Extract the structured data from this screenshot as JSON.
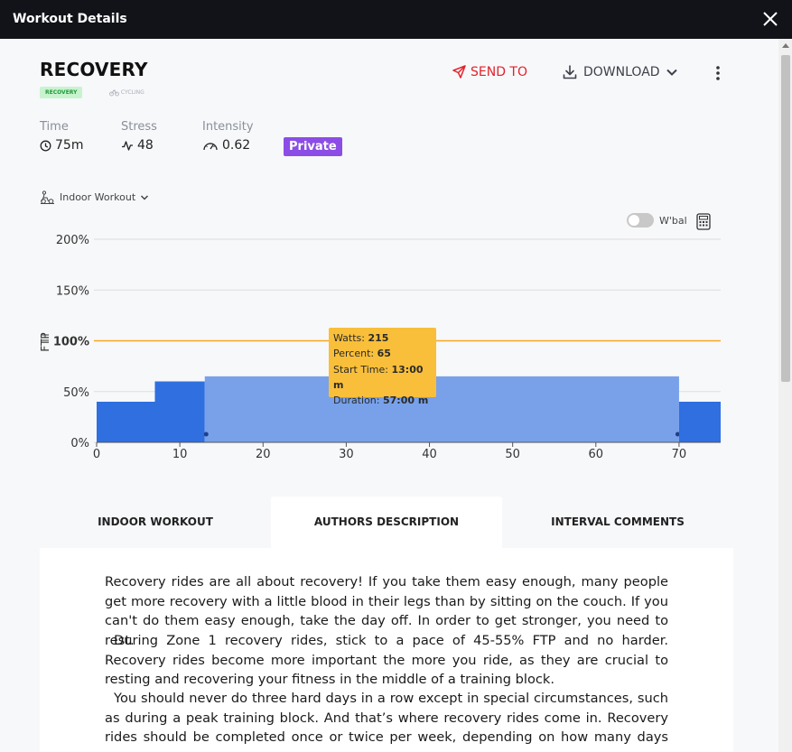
{
  "window": {
    "title": "Workout Details",
    "close_icon": "close-icon"
  },
  "workout": {
    "name": "RECOVERY",
    "tag": "RECOVERY",
    "sport": "CYCLING"
  },
  "actions": {
    "send_to": "SEND TO",
    "download": "DOWNLOAD"
  },
  "metrics": [
    {
      "label": "Time",
      "value": "75m",
      "icon": "clock-icon"
    },
    {
      "label": "Stress",
      "value": "48",
      "icon": "pulse-icon"
    },
    {
      "label": "Intensity",
      "value": "0.62",
      "icon": "gauge-icon"
    }
  ],
  "visibility": "Private",
  "workout_type": "Indoor Workout",
  "wbal_label": "W'bal",
  "colors": {
    "accent_red": "#e2222b",
    "private_purple": "#8b4de6",
    "ftp_line": "#f5a623",
    "block_dark": "#2f6fe0",
    "block_light": "#78a1ea",
    "tooltip": "#f9bf3a"
  },
  "chart_data": {
    "type": "bar",
    "ylabel": "FTP",
    "y_ticks": [
      "200%",
      "150%",
      "100%",
      "50%",
      "0%"
    ],
    "x_ticks": [
      "0",
      "10",
      "20",
      "30",
      "40",
      "50",
      "60",
      "70"
    ],
    "xlim": [
      0,
      75
    ],
    "ylim": [
      0,
      200
    ],
    "reference_line": {
      "value": 100
    },
    "segments": [
      {
        "start": 0,
        "end": 7,
        "percent": 40
      },
      {
        "start": 7,
        "end": 13,
        "percent": 60
      },
      {
        "start": 13,
        "end": 70,
        "percent": 65,
        "highlighted": true
      },
      {
        "start": 70,
        "end": 75,
        "percent": 40
      }
    ],
    "tooltip": {
      "watts_label": "Watts:",
      "watts": "215",
      "percent_label": "Percent:",
      "percent": "65",
      "start_label": "Start Time:",
      "start": "13:00 m",
      "duration_label": "Duration:",
      "duration": "57:00 m"
    }
  },
  "tabs": [
    {
      "label": "INDOOR WORKOUT",
      "active": false
    },
    {
      "label": "AUTHORS DESCRIPTION",
      "active": true
    },
    {
      "label": "INTERVAL COMMENTS",
      "active": false
    }
  ],
  "description": [
    "Recovery rides are all about recovery! If you take them easy enough, many people get more recovery with a little blood in their legs than by sitting on the couch. If you can't do them easy enough, take the day off. In order to get stronger, you need to rest.",
    "During Zone 1 recovery rides, stick to a pace of 45-55% FTP and no harder. Recovery rides become more important the more you ride, as they are crucial to resting and recovering your fitness in the middle of a training block.",
    "You should never do three hard days in a row except in special circumstances, such as during a peak training block. And that’s where recovery rides come in. Recovery rides should be completed once or twice per week, depending on how many days you"
  ]
}
